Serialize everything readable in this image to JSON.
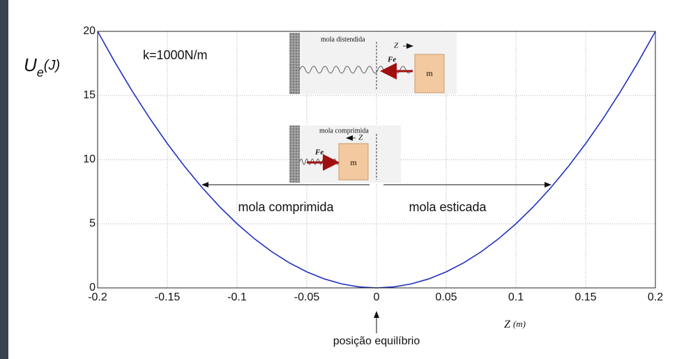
{
  "chart_data": {
    "type": "line",
    "y_label": {
      "symbol": "U",
      "subscript": "e",
      "unit": "(J)"
    },
    "x_label": {
      "symbol": "Z",
      "unit": "(m)"
    },
    "x": [
      -0.2,
      -0.1875,
      -0.175,
      -0.1625,
      -0.15,
      -0.1375,
      -0.125,
      -0.1125,
      -0.1,
      -0.0875,
      -0.075,
      -0.0625,
      -0.05,
      -0.0375,
      -0.025,
      -0.0125,
      0,
      0.0125,
      0.025,
      0.0375,
      0.05,
      0.0625,
      0.075,
      0.0875,
      0.1,
      0.1125,
      0.125,
      0.1375,
      0.15,
      0.1625,
      0.175,
      0.1875,
      0.2
    ],
    "series": [
      {
        "color": "#1f2fbf",
        "values": [
          20,
          17.578125,
          15.3125,
          13.203125,
          11.25,
          9.453125,
          7.8125,
          6.328125,
          5,
          3.828125,
          2.8125,
          1.953125,
          1.25,
          0.703125,
          0.3125,
          0.078125,
          0,
          0.078125,
          0.3125,
          0.703125,
          1.25,
          1.953125,
          2.8125,
          3.828125,
          5,
          6.328125,
          7.8125,
          9.453125,
          11.25,
          13.203125,
          15.3125,
          17.578125,
          20
        ]
      }
    ],
    "xlim": [
      -0.2,
      0.2
    ],
    "ylim": [
      0,
      20
    ],
    "xticks": [
      -0.2,
      -0.15,
      -0.1,
      -0.05,
      0,
      0.05,
      0.1,
      0.15,
      0.2
    ],
    "yticks": [
      0,
      5,
      10,
      15,
      20
    ],
    "grid": true,
    "annotations": {
      "spring_constant": "k=1000N/m",
      "compressed": "mola comprimida",
      "stretched": "mola esticada",
      "equilibrium": "posição equilíbrio"
    },
    "insets": [
      {
        "title": "mola distendida",
        "axis": "Z",
        "force": "Fe",
        "mass": "m"
      },
      {
        "title": "mola comprimida",
        "axis": "Z",
        "force": "Fe",
        "mass": "m"
      }
    ]
  }
}
